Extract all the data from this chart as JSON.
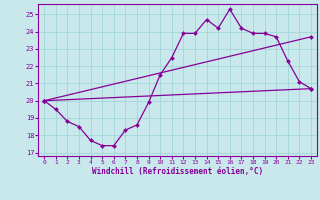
{
  "xlabel": "Windchill (Refroidissement éolien,°C)",
  "xlim": [
    -0.5,
    23.5
  ],
  "ylim": [
    16.8,
    25.6
  ],
  "yticks": [
    17,
    18,
    19,
    20,
    21,
    22,
    23,
    24,
    25
  ],
  "xticks": [
    0,
    1,
    2,
    3,
    4,
    5,
    6,
    7,
    8,
    9,
    10,
    11,
    12,
    13,
    14,
    15,
    16,
    17,
    18,
    19,
    20,
    21,
    22,
    23
  ],
  "bg_color": "#c8e8ec",
  "line_color": "#880099",
  "grid_color": "#a8d8dc",
  "line1_x": [
    0,
    1,
    2,
    3,
    4,
    5,
    6,
    7,
    8,
    9,
    10,
    11,
    12,
    13,
    14,
    15,
    16,
    17,
    18,
    19,
    20,
    21,
    22,
    23
  ],
  "line1_y": [
    20.0,
    19.5,
    18.8,
    18.5,
    17.7,
    17.4,
    17.4,
    18.3,
    18.6,
    19.9,
    21.5,
    22.5,
    23.9,
    23.9,
    24.7,
    24.2,
    25.3,
    24.2,
    23.9,
    23.9,
    23.7,
    22.3,
    21.1,
    20.7
  ],
  "line2_x": [
    0,
    23
  ],
  "line2_y": [
    20.0,
    20.7
  ],
  "line3_x": [
    0,
    23
  ],
  "line3_y": [
    20.0,
    23.7
  ]
}
